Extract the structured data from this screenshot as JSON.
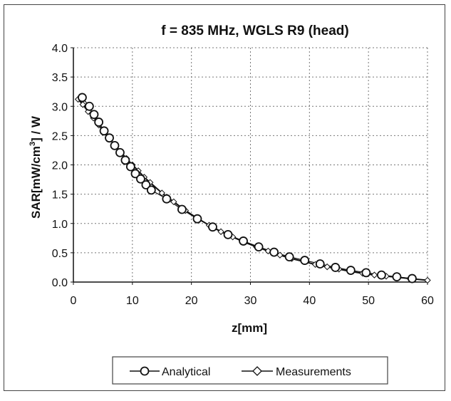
{
  "chart_data": {
    "type": "line",
    "title": "f = 835 MHz, WGLS R9 (head)",
    "xlabel": "z[mm]",
    "ylabel_parts": [
      "SAR[mW/cm",
      "3",
      "] / W"
    ],
    "xlim": [
      0,
      60
    ],
    "ylim": [
      0,
      4.0
    ],
    "xticks": [
      0,
      10,
      20,
      30,
      40,
      50,
      60
    ],
    "yticks": [
      "0.0",
      "0.5",
      "1.0",
      "1.5",
      "2.0",
      "2.5",
      "3.0",
      "3.5",
      "4.0"
    ],
    "grid": true,
    "legend_position": "bottom",
    "series": [
      {
        "name": "Analytical",
        "marker": "circle",
        "x": [
          1.5,
          2.7,
          3.5,
          4.3,
          5.2,
          6.1,
          7.0,
          7.9,
          8.8,
          9.7,
          10.5,
          11.4,
          12.3,
          13.2,
          15.8,
          18.4,
          21.0,
          23.6,
          26.2,
          28.8,
          31.4,
          34.0,
          36.6,
          39.2,
          41.8,
          44.4,
          47.0,
          49.6,
          52.2,
          54.8,
          57.4
        ],
        "values": [
          3.15,
          3.0,
          2.86,
          2.73,
          2.58,
          2.46,
          2.33,
          2.21,
          2.08,
          1.97,
          1.85,
          1.76,
          1.66,
          1.57,
          1.42,
          1.24,
          1.08,
          0.94,
          0.81,
          0.7,
          0.6,
          0.51,
          0.43,
          0.37,
          0.31,
          0.25,
          0.2,
          0.16,
          0.12,
          0.09,
          0.06
        ]
      },
      {
        "name": "Measurements",
        "marker": "diamond",
        "x": [
          0.8,
          1.6,
          2.5,
          3.4,
          4.3,
          5.1,
          6.1,
          7.0,
          8.0,
          9.0,
          10.0,
          11.0,
          12.0,
          13.0,
          15.0,
          17.0,
          19.0,
          21.0,
          23.0,
          25.0,
          27.0,
          29.0,
          31.0,
          33.0,
          35.0,
          37.0,
          39.0,
          41.0,
          43.0,
          45.0,
          47.0,
          49.0,
          51.0,
          53.0,
          55.0,
          57.0,
          60.0
        ],
        "values": [
          3.12,
          3.03,
          2.91,
          2.8,
          2.68,
          2.57,
          2.45,
          2.34,
          2.22,
          2.11,
          2.0,
          1.9,
          1.79,
          1.7,
          1.52,
          1.37,
          1.22,
          1.09,
          0.97,
          0.86,
          0.77,
          0.68,
          0.6,
          0.53,
          0.46,
          0.4,
          0.35,
          0.3,
          0.26,
          0.22,
          0.18,
          0.15,
          0.12,
          0.1,
          0.08,
          0.06,
          0.03
        ]
      }
    ],
    "colors": {
      "line": "#111111",
      "marker_fill": "#ffffff",
      "grid": "#777777"
    }
  }
}
